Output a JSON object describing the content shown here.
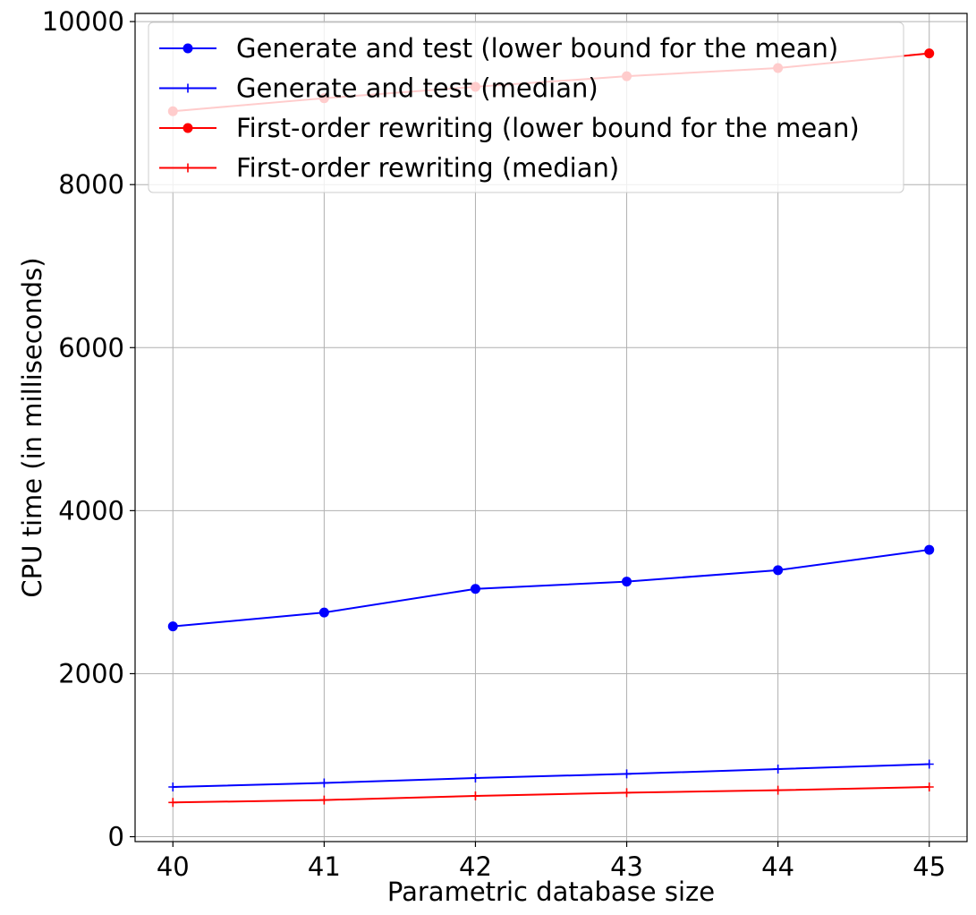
{
  "chart_data": {
    "type": "line",
    "title": "",
    "xlabel": "Parametric database size",
    "ylabel": "CPU time (in milliseconds)",
    "x": [
      40,
      41,
      42,
      43,
      44,
      45
    ],
    "xlim": [
      39.75,
      45.25
    ],
    "ylim": [
      -60,
      10100
    ],
    "xticks": [
      "40",
      "41",
      "42",
      "43",
      "44",
      "45"
    ],
    "yticks": [
      "0",
      "2000",
      "4000",
      "6000",
      "8000",
      "10000"
    ],
    "grid": true,
    "legend_position": "top-left",
    "series": [
      {
        "name": "Generate and test (lower bound for the mean)",
        "color": "#0000ff",
        "marker": "circle",
        "values": [
          2580,
          2750,
          3040,
          3130,
          3270,
          3520
        ]
      },
      {
        "name": "Generate and test (median)",
        "color": "#0000ff",
        "marker": "plus",
        "values": [
          610,
          660,
          720,
          770,
          830,
          890
        ]
      },
      {
        "name": "First-order rewriting (lower bound for the mean)",
        "color": "#ff0000",
        "marker": "circle",
        "values": [
          8900,
          9060,
          9200,
          9330,
          9430,
          9610
        ]
      },
      {
        "name": "First-order rewriting (median)",
        "color": "#ff0000",
        "marker": "plus",
        "values": [
          420,
          450,
          500,
          540,
          570,
          610
        ]
      }
    ]
  }
}
